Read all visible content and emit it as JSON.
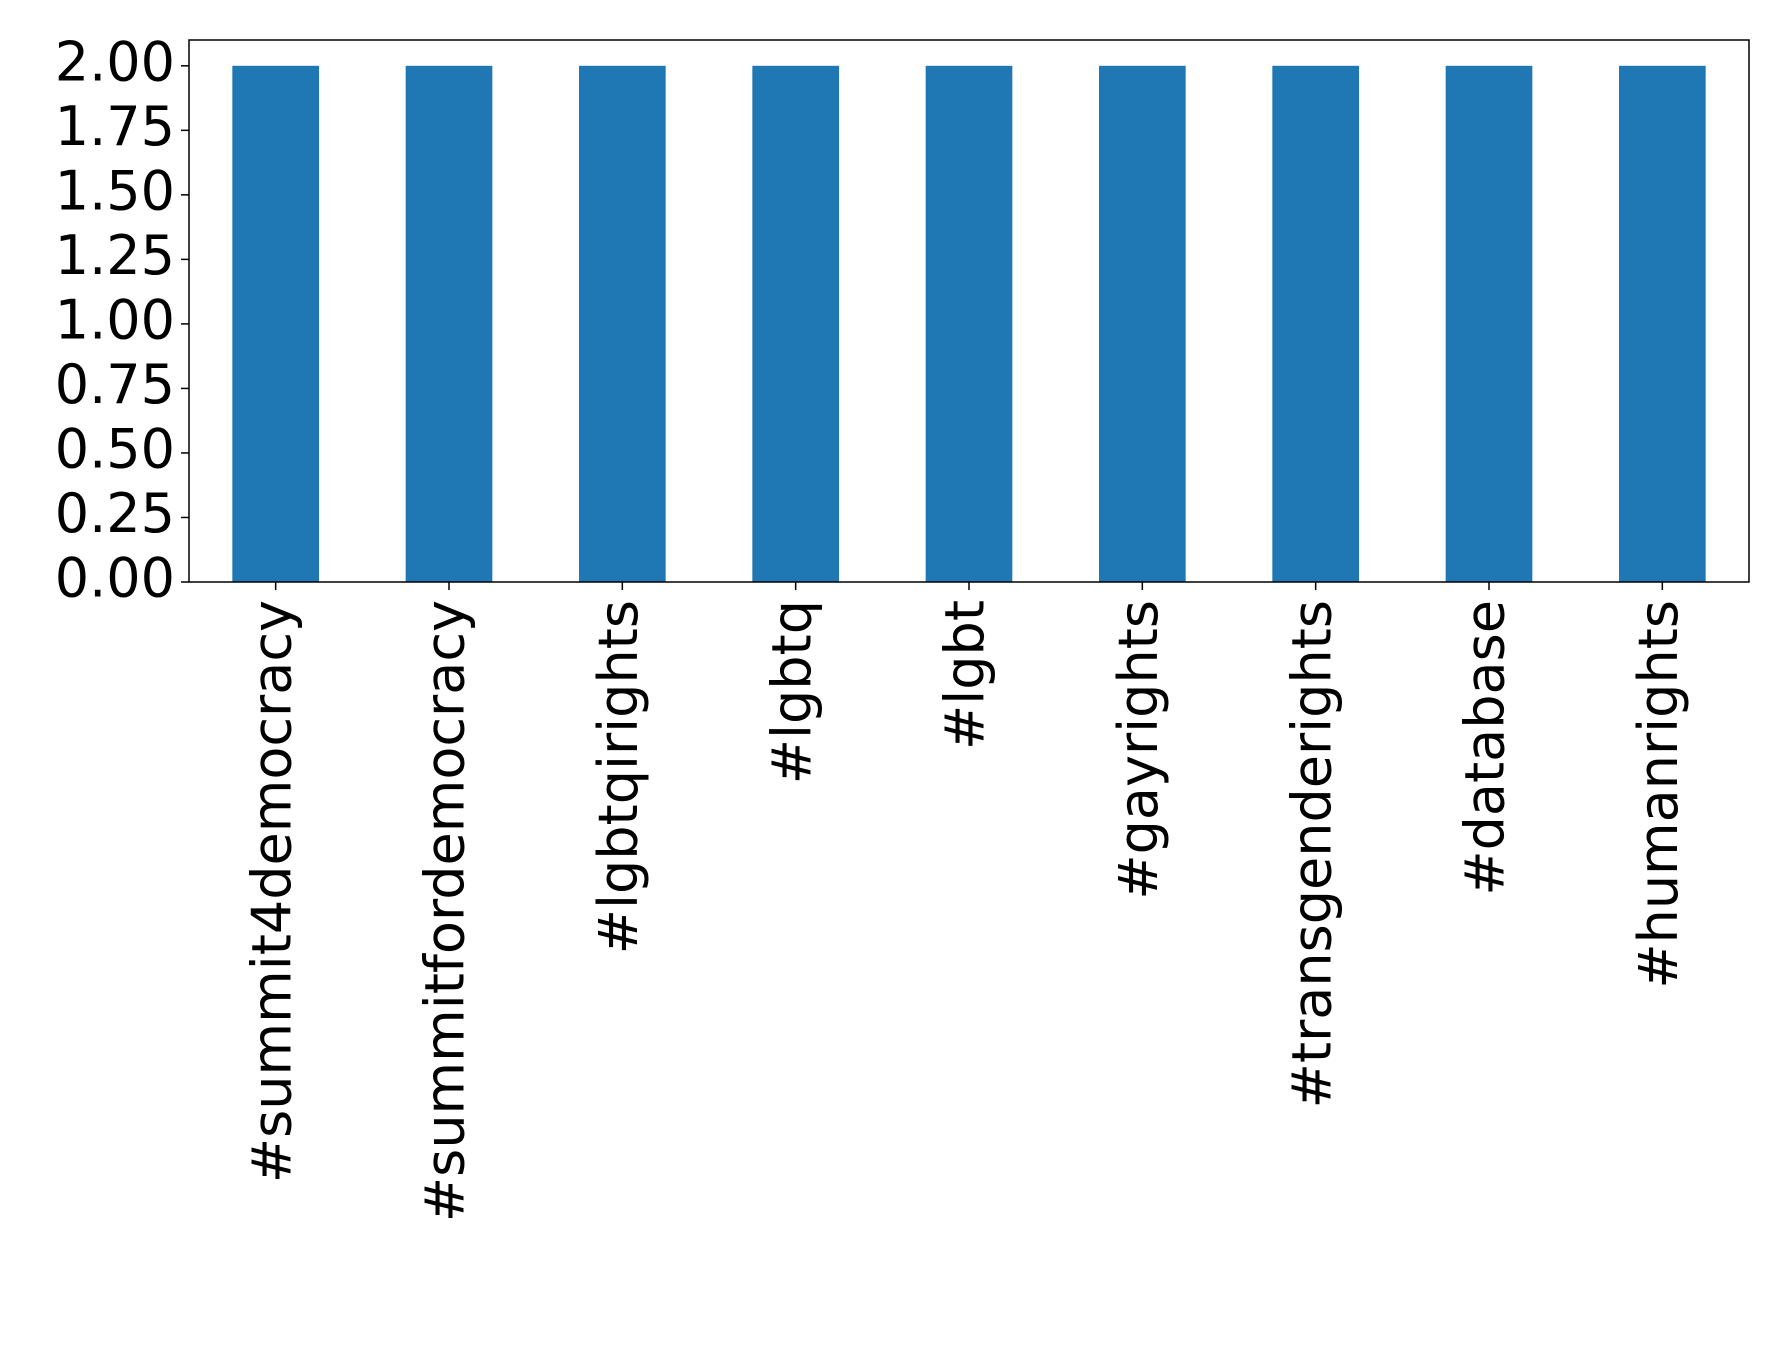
{
  "chart_data": {
    "type": "bar",
    "categories": [
      "#summit4democracy",
      "#summitfordemocracy",
      "#lgbtqirights",
      "#lgbtq",
      "#lgbt",
      "#gayrights",
      "#transgenderights",
      "#database",
      "#humanrights"
    ],
    "values": [
      2,
      2,
      2,
      2,
      2,
      2,
      2,
      2,
      2
    ],
    "color": "#1f77b4",
    "ylim": [
      0,
      2.1
    ],
    "yticks": [
      {
        "value": 0,
        "label": "0.00"
      },
      {
        "value": 0.25,
        "label": "0.25"
      },
      {
        "value": 0.5,
        "label": "0.50"
      },
      {
        "value": 0.75,
        "label": "0.75"
      },
      {
        "value": 1,
        "label": "1.00"
      },
      {
        "value": 1.25,
        "label": "1.25"
      },
      {
        "value": 1.5,
        "label": "1.50"
      },
      {
        "value": 1.75,
        "label": "1.75"
      },
      {
        "value": 2,
        "label": "2.00"
      }
    ],
    "grid": false
  }
}
